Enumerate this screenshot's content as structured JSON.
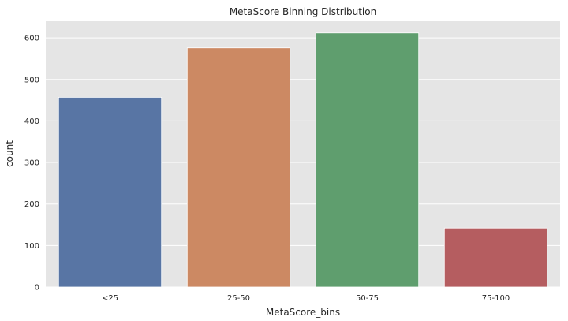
{
  "chart_data": {
    "type": "bar",
    "title": "MetaScore Binning Distribution",
    "xlabel": "MetaScore_bins",
    "ylabel": "count",
    "categories": [
      "<25",
      "25-50",
      "50-75",
      "75-100"
    ],
    "values": [
      457,
      576,
      612,
      142
    ],
    "ylim": [
      0,
      642
    ],
    "yticks": [
      0,
      100,
      200,
      300,
      400,
      500,
      600
    ],
    "colors": [
      "#5875a4",
      "#cc8963",
      "#5f9e6e",
      "#b55d60"
    ],
    "background": "#e5e5e5",
    "grid": true,
    "legend": "none"
  }
}
